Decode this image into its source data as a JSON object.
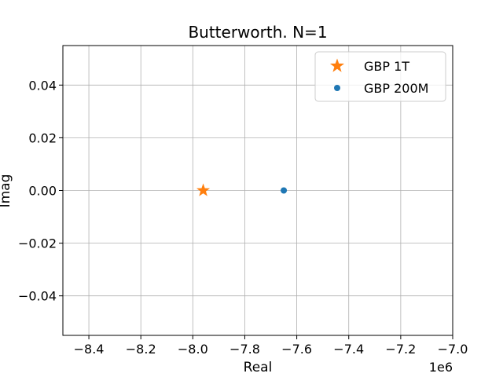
{
  "chart_data": {
    "type": "scatter",
    "title": "Butterworth. N=1",
    "xlabel": "Real",
    "ylabel": "Imag",
    "x_offset_label": "1e6",
    "xlim": [
      -8.5,
      -7.0
    ],
    "ylim": [
      -0.055,
      0.055
    ],
    "xticks": [
      -8.4,
      -8.2,
      -8.0,
      -7.8,
      -7.6,
      -7.4,
      -7.2,
      -7.0
    ],
    "xtick_labels": [
      "−8.4",
      "−8.2",
      "−8.0",
      "−7.8",
      "−7.6",
      "−7.4",
      "−7.2",
      "−7.0"
    ],
    "yticks": [
      0.04,
      0.02,
      0.0,
      -0.02,
      -0.04
    ],
    "ytick_labels": [
      "0.04",
      "0.02",
      "0.00",
      "−0.02",
      "−0.04"
    ],
    "grid": true,
    "legend_position": "top-right",
    "series": [
      {
        "name": "GBP 1T",
        "marker": "star",
        "color": "#ff7f0e",
        "x": [
          -7.96
        ],
        "y": [
          0.0
        ]
      },
      {
        "name": "GBP 200M",
        "marker": "circle",
        "color": "#1f77b4",
        "x": [
          -7.65
        ],
        "y": [
          0.0
        ]
      }
    ]
  }
}
